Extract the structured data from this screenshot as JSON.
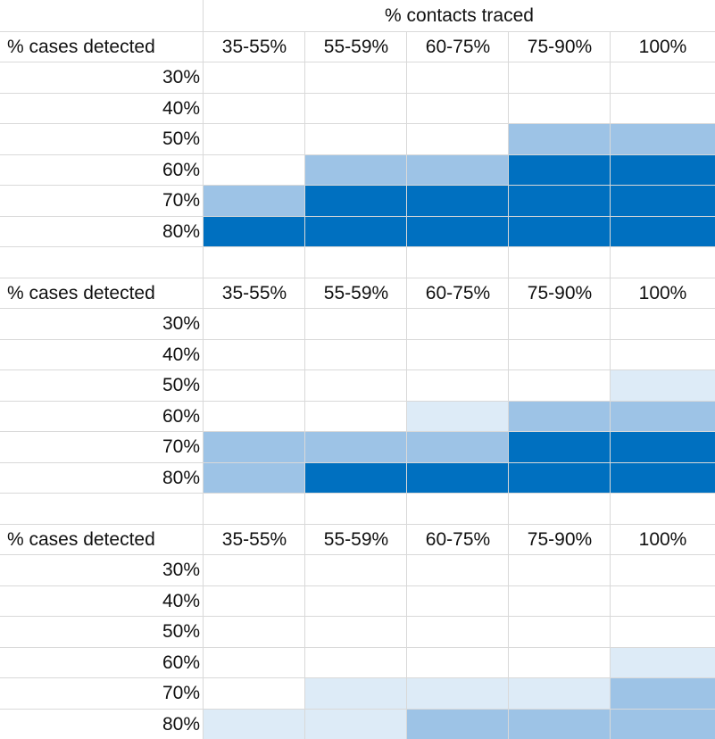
{
  "chart_data": {
    "type": "heatmap",
    "column_header": "% contacts traced",
    "row_header": "% cases detected",
    "columns": [
      "35-55%",
      "55-59%",
      "60-75%",
      "75-90%",
      "100%"
    ],
    "rows": [
      "30%",
      "40%",
      "50%",
      "60%",
      "70%",
      "80%"
    ],
    "color_scale": {
      "0": "#ffffff",
      "1": "#ddebf7",
      "2": "#9dc3e6",
      "3": "#0070c0"
    },
    "tables": [
      {
        "levels": [
          [
            0,
            0,
            0,
            0,
            0
          ],
          [
            0,
            0,
            0,
            0,
            0
          ],
          [
            0,
            0,
            0,
            2,
            2
          ],
          [
            0,
            2,
            2,
            3,
            3
          ],
          [
            2,
            3,
            3,
            3,
            3
          ],
          [
            3,
            3,
            3,
            3,
            3
          ]
        ]
      },
      {
        "levels": [
          [
            0,
            0,
            0,
            0,
            0
          ],
          [
            0,
            0,
            0,
            0,
            0
          ],
          [
            0,
            0,
            0,
            0,
            1
          ],
          [
            0,
            0,
            1,
            2,
            2
          ],
          [
            2,
            2,
            2,
            3,
            3
          ],
          [
            2,
            3,
            3,
            3,
            3
          ]
        ]
      },
      {
        "levels": [
          [
            0,
            0,
            0,
            0,
            0
          ],
          [
            0,
            0,
            0,
            0,
            0
          ],
          [
            0,
            0,
            0,
            0,
            0
          ],
          [
            0,
            0,
            0,
            0,
            1
          ],
          [
            0,
            1,
            1,
            1,
            2
          ],
          [
            1,
            1,
            2,
            2,
            2
          ]
        ]
      }
    ]
  }
}
